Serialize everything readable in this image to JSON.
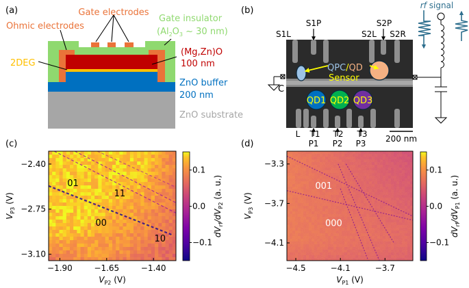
{
  "panels": {
    "a": {
      "label": "(a)",
      "gate_electrodes": "Gate electrodes",
      "ohmic_electrodes": "Ohmic electrodes",
      "gate_insulator": "Gate insulator",
      "gate_insulator_detail_pre": "(Al",
      "gate_insulator_sub2": "2",
      "gate_insulator_o": "O",
      "gate_insulator_sub3": "3",
      "gate_insulator_detail_post": " ~ 30 nm)",
      "mgzno": "(Mg,Zn)O",
      "mgzno_thickness": "100 nm",
      "twodeg": "2DEG",
      "zno_buffer": "ZnO buffer",
      "zno_buffer_thickness": "200 nm",
      "zno_substrate": "ZnO substrate",
      "colors": {
        "ohmic": "#ea7339",
        "insulator": "#8fd96f",
        "mgzno": "#c00000",
        "twodeg": "#ffc000",
        "buffer": "#0070c0",
        "substrate": "#a6a6a6"
      }
    },
    "b": {
      "label": "(b)",
      "rf_signal_italic": "rf",
      "rf_signal_rest": " signal",
      "gates_top": [
        "S1L",
        "S1P",
        "S2P",
        "S2L",
        "S2R"
      ],
      "gates_bottom": [
        "L",
        "T1",
        "T2",
        "T3"
      ],
      "plungers": [
        "P1",
        "P2",
        "P3"
      ],
      "sensor_qpc": "QPC",
      "sensor_slash": "/",
      "sensor_qd": "QD",
      "sensor": "Sensor",
      "contact": "C",
      "dots": [
        {
          "label": "QD1",
          "color": "#0070c0"
        },
        {
          "label": "QD2",
          "color": "#00b050"
        },
        {
          "label": "QD3",
          "color": "#7030a0"
        }
      ],
      "qpc_color": "#9dc3e6",
      "qd_sensor_color": "#f4b183",
      "scalebar": "200 nm",
      "rf_color": "#2e6f8e"
    }
  },
  "chart_data": [
    {
      "type": "heatmap",
      "panel": "(c)",
      "title": "",
      "xlabel": "V_P2 (V)",
      "xlabel_main": "V",
      "xlabel_sub": "P2",
      "xlabel_unit": " (V)",
      "ylabel_main": "V",
      "ylabel_sub": "P3",
      "ylabel_unit": " (V)",
      "xlim": [
        -1.96,
        -1.28
      ],
      "ylim": [
        -3.15,
        -2.3
      ],
      "xticks": [
        -1.9,
        -1.65,
        -1.4
      ],
      "xtick_labels": [
        "−1.90",
        "−1.65",
        "−1.40"
      ],
      "yticks": [
        -2.4,
        -2.75,
        -3.1
      ],
      "ytick_labels": [
        "−2.40",
        "−2.75",
        "−3.10"
      ],
      "colorbar": {
        "label_pre": "dV",
        "label_sub1": "rf",
        "label_mid": "/dV",
        "label_sub2": "P2",
        "label_post": " (a. u.)",
        "range": [
          -0.15,
          0.15
        ],
        "ticks": [
          0.1,
          0.0,
          -0.1
        ],
        "tick_labels": [
          "0.1",
          "0.0",
          "−0.1"
        ],
        "colormap": "plasma"
      },
      "annotations": [
        {
          "text": "01",
          "x": -1.83,
          "y": -2.57
        },
        {
          "text": "11",
          "x": -1.58,
          "y": -2.65
        },
        {
          "text": "00",
          "x": -1.68,
          "y": -2.88
        },
        {
          "text": "10",
          "x": -1.365,
          "y": -3.0
        }
      ],
      "transition_lines": [
        {
          "from": [
            -1.96,
            -2.57
          ],
          "to": [
            -1.3,
            -2.95
          ],
          "strength": "strong"
        },
        {
          "from": [
            -1.93,
            -2.3
          ],
          "to": [
            -1.28,
            -2.78
          ],
          "strength": "medium"
        },
        {
          "from": [
            -1.82,
            -2.3
          ],
          "to": [
            -1.28,
            -2.7
          ],
          "strength": "medium"
        },
        {
          "from": [
            -1.7,
            -2.3
          ],
          "to": [
            -1.28,
            -2.58
          ],
          "strength": "weak"
        }
      ],
      "grid": false
    },
    {
      "type": "heatmap",
      "panel": "(d)",
      "title": "",
      "xlabel": "V_P1 (V)",
      "xlabel_main": "V",
      "xlabel_sub": "P1",
      "xlabel_unit": " (V)",
      "ylabel_main": "V",
      "ylabel_sub": "P3",
      "ylabel_unit": " (V)",
      "xlim": [
        -4.58,
        -3.45
      ],
      "ylim": [
        -4.28,
        -3.17
      ],
      "xticks": [
        -4.5,
        -4.1,
        -3.7
      ],
      "xtick_labels": [
        "−4.5",
        "−4.1",
        "−3.7"
      ],
      "yticks": [
        -3.3,
        -3.7,
        -4.1
      ],
      "ytick_labels": [
        "−3.3",
        "−3.7",
        "−4.1"
      ],
      "colorbar": {
        "label_pre": "dV",
        "label_sub1": "rf",
        "label_mid": "/dV",
        "label_sub2": "P1",
        "label_post": " (a. u.)",
        "range": [
          -0.15,
          0.15
        ],
        "ticks": [
          0.1,
          0.0,
          -0.1
        ],
        "tick_labels": [
          "0.1",
          "0.0",
          "−0.1"
        ],
        "colormap": "plasma"
      },
      "annotations": [
        {
          "text": "001",
          "x": -4.25,
          "y": -3.55
        },
        {
          "text": "000",
          "x": -4.16,
          "y": -3.93
        }
      ],
      "transition_lines": [
        {
          "from": [
            -4.58,
            -3.22
          ],
          "to": [
            -3.45,
            -3.83
          ]
        },
        {
          "from": [
            -4.58,
            -3.57
          ],
          "to": [
            -3.45,
            -3.87
          ]
        },
        {
          "from": [
            -4.12,
            -3.3
          ],
          "to": [
            -3.75,
            -4.28
          ]
        },
        {
          "from": [
            -4.05,
            -3.3
          ],
          "to": [
            -3.62,
            -4.1
          ]
        },
        {
          "from": [
            -4.1,
            -3.55
          ],
          "to": [
            -3.85,
            -4.28
          ]
        }
      ],
      "grid": false
    }
  ]
}
